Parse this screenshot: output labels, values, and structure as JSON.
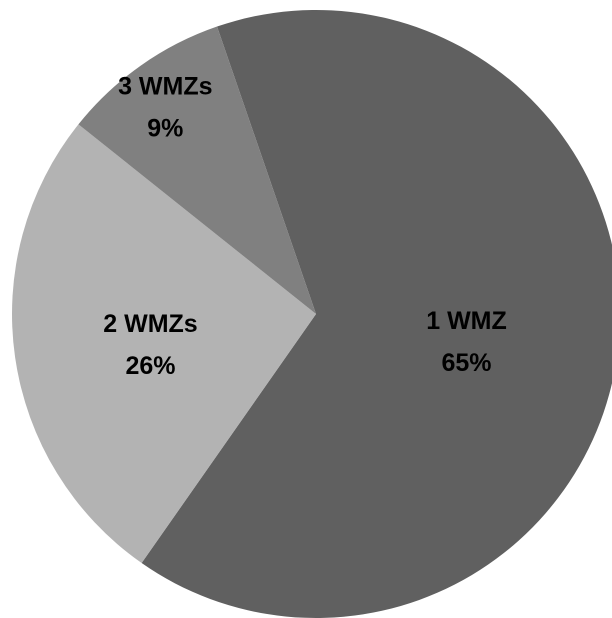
{
  "chart_data": {
    "type": "pie",
    "categories": [
      "1 WMZ",
      "2 WMZs",
      "3 WMZs"
    ],
    "values": [
      65,
      26,
      9
    ],
    "labels": [
      "65%",
      "26%",
      "9%"
    ],
    "colors": [
      "#606060",
      "#b3b3b3",
      "#808080"
    ],
    "title": "",
    "legend": "none",
    "start": "top",
    "direction": "clockwise"
  }
}
